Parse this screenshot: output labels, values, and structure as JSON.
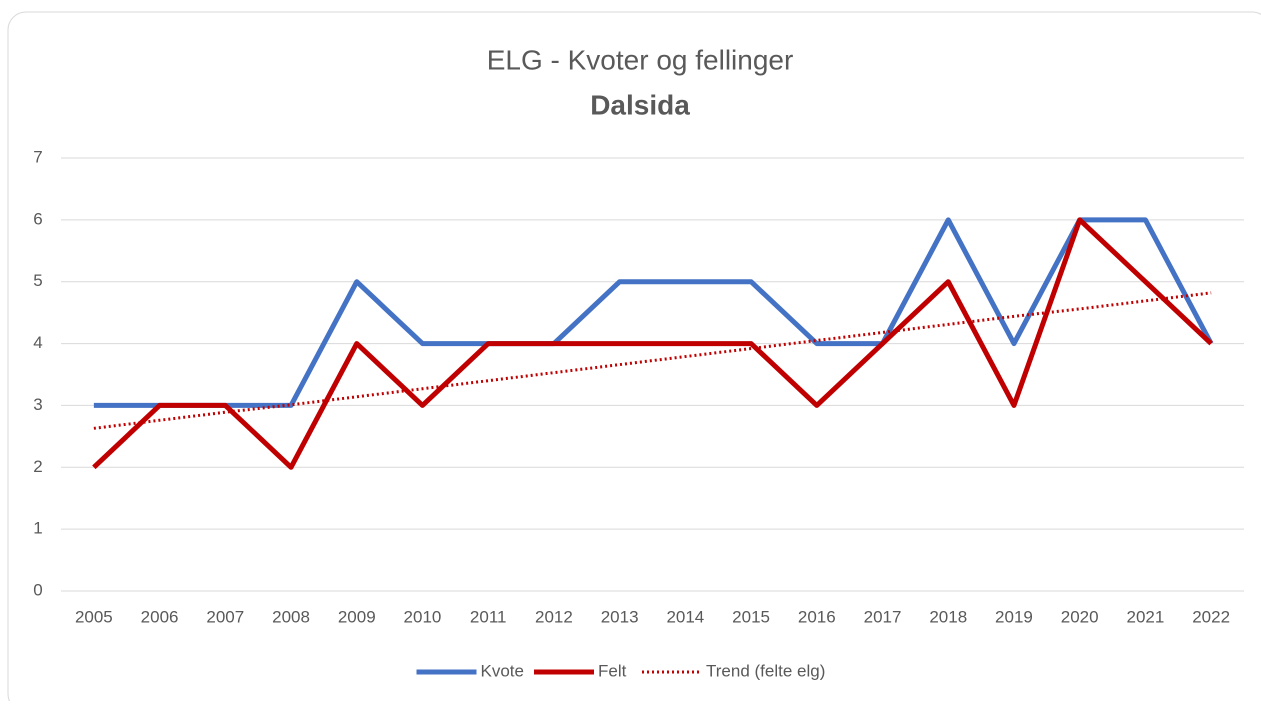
{
  "chart_data": {
    "type": "line",
    "title": "ELG - Kvoter og fellinger",
    "subtitle": "Dalsida",
    "categories": [
      "2005",
      "2006",
      "2007",
      "2008",
      "2009",
      "2010",
      "2011",
      "2012",
      "2013",
      "2014",
      "2015",
      "2016",
      "2017",
      "2018",
      "2019",
      "2020",
      "2021",
      "2022"
    ],
    "series": [
      {
        "name": "Kvote",
        "color": "#4472c4",
        "dash": "solid",
        "values": [
          3,
          3,
          3,
          3,
          5,
          4,
          4,
          4,
          5,
          5,
          5,
          4,
          4,
          6,
          4,
          6,
          6,
          4
        ]
      },
      {
        "name": "Felt",
        "color": "#c00000",
        "dash": "solid",
        "values": [
          2,
          3,
          3,
          2,
          4,
          3,
          4,
          4,
          4,
          4,
          4,
          3,
          4,
          5,
          3,
          6,
          5,
          4
        ]
      },
      {
        "name": "Trend (felte elg)",
        "color": "#c00000",
        "dash": "dotted",
        "values": [
          2.63,
          2.76,
          2.89,
          3.01,
          3.14,
          3.27,
          3.4,
          3.53,
          3.66,
          3.79,
          3.92,
          4.05,
          4.18,
          4.31,
          4.44,
          4.56,
          4.69,
          4.82
        ]
      }
    ],
    "ylim": [
      0,
      7
    ],
    "yticks": [
      0,
      1,
      2,
      3,
      4,
      5,
      6,
      7
    ],
    "grid": true,
    "legend": "bottom"
  }
}
